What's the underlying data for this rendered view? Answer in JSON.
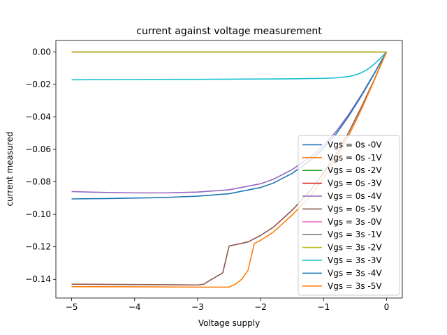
{
  "chart_data": {
    "type": "line",
    "title": "current against voltage measurement",
    "xlabel": "Voltage supply",
    "ylabel": "current measured",
    "xlim": [
      -5.25,
      0.25
    ],
    "ylim": [
      -0.1515,
      0.007
    ],
    "x_ticks": [
      -5,
      -4,
      -3,
      -2,
      -1,
      0
    ],
    "x_tick_labels": [
      "−5",
      "−4",
      "−3",
      "−2",
      "−1",
      "0"
    ],
    "y_ticks": [
      0.0,
      -0.02,
      -0.04,
      -0.06,
      -0.08,
      -0.1,
      -0.12,
      -0.14
    ],
    "y_tick_labels": [
      "0.00",
      "−0.02",
      "−0.04",
      "−0.06",
      "−0.08",
      "−0.10",
      "−0.12",
      "−0.14"
    ],
    "grid": false,
    "legend_position": "lower-right",
    "series": [
      {
        "name": "Vgs = 0s -0V",
        "color": "#1f77b4",
        "x": [
          -5,
          0
        ],
        "y": [
          0.0,
          0.0
        ]
      },
      {
        "name": "Vgs = 0s -1V",
        "color": "#ff7f0e",
        "x": [
          -5,
          0
        ],
        "y": [
          0.0,
          0.0
        ]
      },
      {
        "name": "Vgs = 0s -2V",
        "color": "#2ca02c",
        "x": [
          -5,
          0
        ],
        "y": [
          0.0,
          0.0
        ]
      },
      {
        "name": "Vgs = 0s -3V",
        "color": "#d62728",
        "x": [
          -5,
          0
        ],
        "y": [
          0.0,
          0.0
        ]
      },
      {
        "name": "Vgs = 0s -4V",
        "color": "#9467bd",
        "x": [
          -5,
          -4.5,
          -4,
          -3.5,
          -3,
          -2.5,
          -2,
          -1.8,
          -1.5,
          -1.2,
          -1,
          -0.8,
          -0.6,
          -0.4,
          -0.2,
          0
        ],
        "y": [
          -0.086,
          -0.0865,
          -0.0868,
          -0.0868,
          -0.0863,
          -0.0849,
          -0.0812,
          -0.0785,
          -0.0725,
          -0.0645,
          -0.0575,
          -0.049,
          -0.0385,
          -0.0265,
          -0.0135,
          0.0
        ]
      },
      {
        "name": "Vgs = 0s -5V",
        "color": "#8c564b",
        "x": [
          -5,
          -4,
          -3.5,
          -3,
          -2.9,
          -2.8,
          -2.6,
          -2.5,
          -2.2,
          -2,
          -1.8,
          -1.5,
          -1.2,
          -1,
          -0.8,
          -0.6,
          -0.4,
          -0.2,
          0
        ],
        "y": [
          -0.143,
          -0.1432,
          -0.1433,
          -0.1435,
          -0.143,
          -0.1405,
          -0.136,
          -0.1195,
          -0.117,
          -0.113,
          -0.108,
          -0.0975,
          -0.085,
          -0.0745,
          -0.063,
          -0.0495,
          -0.034,
          -0.0175,
          0.0
        ]
      },
      {
        "name": "Vgs = 3s -0V",
        "color": "#e377c2",
        "x": [
          -5,
          0
        ],
        "y": [
          0.0,
          0.0
        ]
      },
      {
        "name": "Vgs = 3s -1V",
        "color": "#7f7f7f",
        "x": [
          -5,
          0
        ],
        "y": [
          0.0,
          0.0
        ]
      },
      {
        "name": "Vgs = 3s -2V",
        "color": "#bcbd22",
        "x": [
          -5,
          0
        ],
        "y": [
          0.0,
          0.0
        ]
      },
      {
        "name": "Vgs = 3s -3V",
        "color": "#17becf",
        "x": [
          -5,
          -4,
          -3,
          -2,
          -1.5,
          -1,
          -0.8,
          -0.6,
          -0.5,
          -0.4,
          -0.3,
          -0.2,
          -0.1,
          0
        ],
        "y": [
          -0.0172,
          -0.017,
          -0.0169,
          -0.0167,
          -0.0166,
          -0.0163,
          -0.016,
          -0.0152,
          -0.0143,
          -0.0129,
          -0.0107,
          -0.0077,
          -0.0041,
          0.0
        ]
      },
      {
        "name": "Vgs = 3s -4V",
        "color": "#1f77b4",
        "x": [
          -5,
          -4.5,
          -4,
          -3.5,
          -3,
          -2.5,
          -2,
          -1.8,
          -1.5,
          -1.2,
          -1,
          -0.8,
          -0.6,
          -0.4,
          -0.2,
          0
        ],
        "y": [
          -0.0905,
          -0.0903,
          -0.09,
          -0.0896,
          -0.0888,
          -0.0873,
          -0.0835,
          -0.0808,
          -0.0748,
          -0.0665,
          -0.0592,
          -0.0505,
          -0.0395,
          -0.0272,
          -0.0138,
          0.0
        ]
      },
      {
        "name": "Vgs = 3s -5V",
        "color": "#ff7f0e",
        "x": [
          -5,
          -4,
          -3.5,
          -3,
          -2.7,
          -2.5,
          -2.4,
          -2.3,
          -2.2,
          -2.1,
          -2,
          -1.8,
          -1.5,
          -1.2,
          -1,
          -0.8,
          -0.6,
          -0.4,
          -0.2,
          0
        ],
        "y": [
          -0.1445,
          -0.1446,
          -0.1447,
          -0.1448,
          -0.1448,
          -0.1448,
          -0.143,
          -0.14,
          -0.1345,
          -0.118,
          -0.116,
          -0.111,
          -0.1005,
          -0.0885,
          -0.0775,
          -0.0655,
          -0.0515,
          -0.0355,
          -0.018,
          0.0
        ]
      }
    ]
  }
}
